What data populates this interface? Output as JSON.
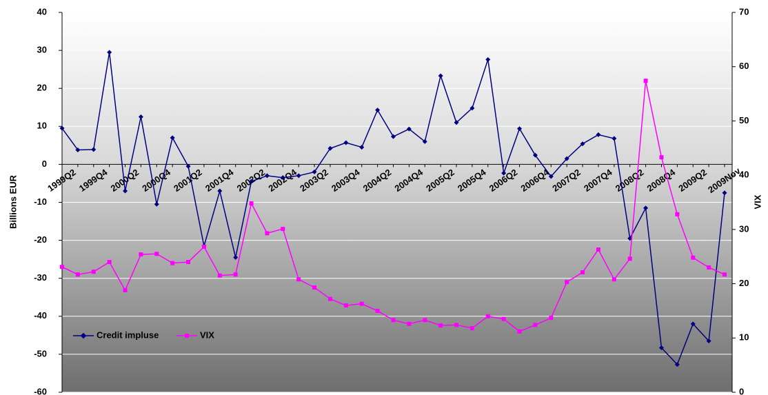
{
  "chart_data": {
    "type": "line",
    "y_label": "Billions EUR",
    "y2_label": "VIX",
    "categories": [
      "1999Q2",
      null,
      "1999Q4",
      null,
      "2000Q2",
      null,
      "2000Q4",
      null,
      "2001Q2",
      null,
      "2001Q4",
      null,
      "2002Q2",
      null,
      "2002Q4",
      null,
      "2003Q2",
      null,
      "2003Q4",
      null,
      "2004Q2",
      null,
      "2004Q4",
      null,
      "2005Q2",
      null,
      "2005Q4",
      null,
      "2006Q2",
      null,
      "2006Q4",
      null,
      "2007Q2",
      null,
      "2007Q4",
      null,
      "2008Q2",
      null,
      "2008Q4",
      null,
      "2009Q2",
      null,
      "2009Nov"
    ],
    "series": [
      {
        "name": "Credit impluse",
        "color": "#000080",
        "marker": "diamond",
        "values": [
          9.5,
          3.8,
          3.9,
          29.5,
          -7,
          12.5,
          -10.5,
          7,
          -0.5,
          -21.5,
          -7,
          -24.5,
          -4.5,
          -3,
          -3.5,
          -3,
          -2,
          4.2,
          5.7,
          4.5,
          14.3,
          7.3,
          9.3,
          6,
          23.3,
          11,
          14.8,
          27.6,
          -2.3,
          9.4,
          2.4,
          -3.2,
          1.5,
          5.4,
          7.8,
          6.8,
          -19.5,
          -11.5,
          -48.3,
          -52.7,
          -42,
          -46.5,
          -7.5
        ]
      },
      {
        "name": "VIX",
        "color": "#ff00ff",
        "marker": "square",
        "axis": "y2",
        "values": [
          23.1,
          21.7,
          22.2,
          24.0,
          18.8,
          25.4,
          25.5,
          23.8,
          24.0,
          26.8,
          21.5,
          21.7,
          34.8,
          29.3,
          30.1,
          20.8,
          19.3,
          17.2,
          16.0,
          16.3,
          15.0,
          13.3,
          12.6,
          13.3,
          12.3,
          12.4,
          11.8,
          14.0,
          13.5,
          11.2,
          12.4,
          13.7,
          20.3,
          22.1,
          26.3,
          20.8,
          24.6,
          57.4,
          43.3,
          32.8,
          24.8,
          23.0,
          21.7
        ]
      }
    ],
    "ylim": [
      -60,
      40
    ],
    "yticks": [
      -60,
      -50,
      -40,
      -30,
      -20,
      -10,
      0,
      10,
      20,
      30,
      40
    ],
    "y2lim": [
      0,
      70
    ],
    "y2ticks": [
      0,
      10,
      20,
      30,
      40,
      50,
      60,
      70
    ],
    "grid": true,
    "legend": "lower left"
  }
}
